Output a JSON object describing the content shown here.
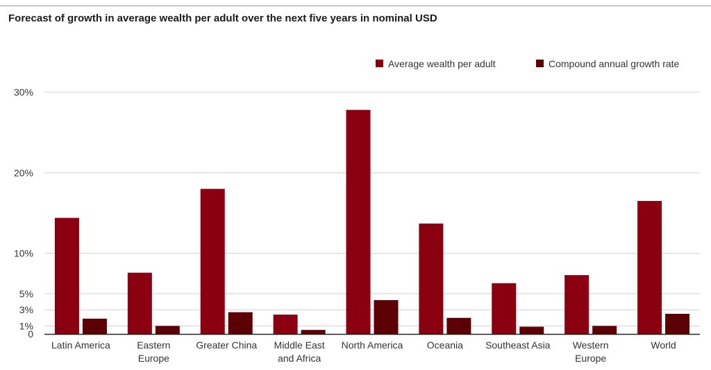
{
  "title": "Forecast of growth in average wealth per adult over the next five years in nominal USD",
  "legend": {
    "series1": "Average wealth per adult",
    "series2": "Compound annual growth rate"
  },
  "colors": {
    "series1": "#8b0010",
    "series2": "#5c0006",
    "grid": "#cfcfcf",
    "axis": "#222222"
  },
  "chart_data": {
    "type": "bar",
    "categories": [
      [
        "Latin America"
      ],
      [
        "Eastern",
        "Europe"
      ],
      [
        "Greater China"
      ],
      [
        "Middle East",
        "and Africa"
      ],
      [
        "North America"
      ],
      [
        "Oceania"
      ],
      [
        "Southeast Asia"
      ],
      [
        "Western",
        "Europe"
      ],
      [
        "World"
      ]
    ],
    "series": [
      {
        "name": "Average wealth per adult",
        "values": [
          14.4,
          7.6,
          18.0,
          2.4,
          27.8,
          13.7,
          6.3,
          7.3,
          16.5
        ]
      },
      {
        "name": "Compound annual growth rate",
        "values": [
          1.9,
          1.0,
          2.7,
          0.5,
          4.2,
          2.0,
          0.9,
          1.0,
          2.5
        ]
      }
    ],
    "yticks": [
      0,
      1,
      3,
      5,
      10,
      20,
      30
    ],
    "yticklabels": [
      "0",
      "1%",
      "3%",
      "5%",
      "10%",
      "20%",
      "30%"
    ],
    "ylim": [
      0,
      30
    ],
    "grid": true,
    "legend_position": "top-right"
  }
}
